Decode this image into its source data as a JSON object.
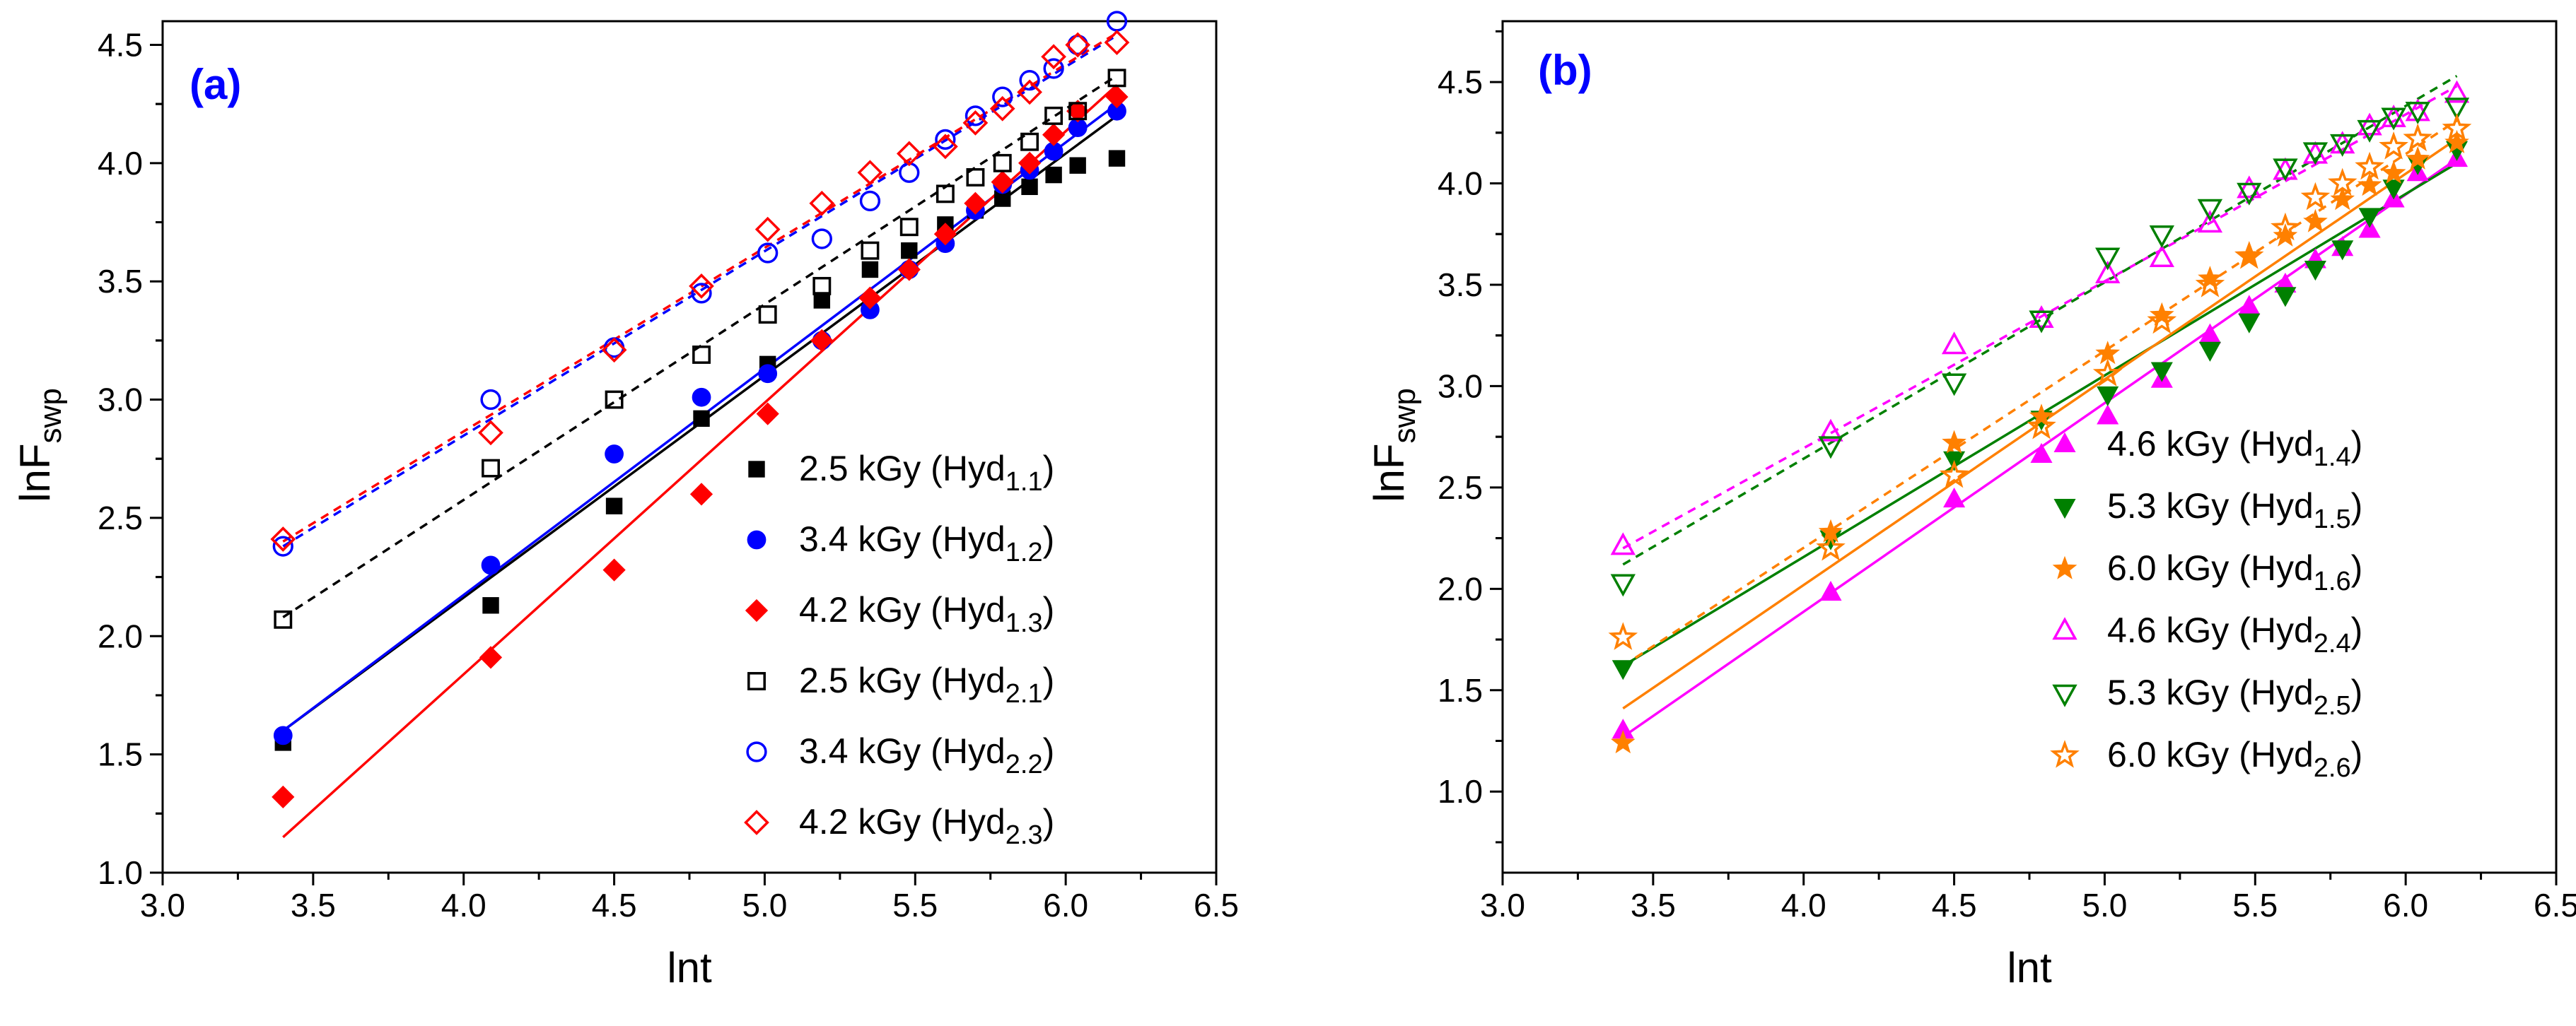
{
  "figure": {
    "panels": [
      {
        "panel_label": "(a)",
        "xlabel": "lnt",
        "ylabel_main": "lnF",
        "ylabel_sub": "swp"
      },
      {
        "panel_label": "(b)",
        "xlabel": "lnt",
        "ylabel_main": "lnF",
        "ylabel_sub": "swp"
      }
    ]
  },
  "chart_data": [
    {
      "type": "scatter",
      "title": "(a)",
      "xlabel": "lnt",
      "ylabel": "lnF_swp",
      "xlim": [
        3.0,
        6.5
      ],
      "ylim": [
        1.0,
        4.6
      ],
      "xticks": [
        "3.0",
        "3.5",
        "4.0",
        "4.5",
        "5.0",
        "5.5",
        "6.0",
        "6.5"
      ],
      "yticks": [
        "1.0",
        "1.5",
        "2.0",
        "2.5",
        "3.0",
        "3.5",
        "4.0",
        "4.5"
      ],
      "legend_position": "bottom-right",
      "x": [
        3.4,
        4.09,
        4.5,
        4.79,
        5.01,
        5.19,
        5.35,
        5.48,
        5.6,
        5.7,
        5.79,
        5.88,
        5.96,
        6.04,
        6.17
      ],
      "series": [
        {
          "name": "2.5 kGy (Hyd",
          "sub": "1.1",
          "suffix": ")",
          "color": "#000000",
          "marker": "square",
          "filled": true,
          "fit": "solid",
          "fit_line": [
            1.6,
            4.2
          ],
          "values": [
            1.55,
            2.13,
            2.55,
            2.92,
            3.15,
            3.42,
            3.55,
            3.63,
            3.74,
            3.8,
            3.85,
            3.9,
            3.95,
            3.99,
            4.02
          ]
        },
        {
          "name": "3.4 kGy (Hyd",
          "sub": "1.2",
          "suffix": ")",
          "color": "#0000ff",
          "marker": "circle",
          "filled": true,
          "fit": "solid",
          "fit_line": [
            1.6,
            4.25
          ],
          "values": [
            1.58,
            2.3,
            2.77,
            3.01,
            3.11,
            3.25,
            3.38,
            3.55,
            3.66,
            3.8,
            3.91,
            3.97,
            4.05,
            4.15,
            4.22
          ]
        },
        {
          "name": "4.2 kGy (Hyd",
          "sub": "1.3",
          "suffix": ")",
          "color": "#ff0000",
          "marker": "diamond",
          "filled": true,
          "fit": "solid",
          "fit_line": [
            1.15,
            4.33
          ],
          "values": [
            1.32,
            1.91,
            2.28,
            2.6,
            2.94,
            3.25,
            3.43,
            3.55,
            3.7,
            3.83,
            3.92,
            4.0,
            4.12,
            4.22,
            4.28
          ]
        },
        {
          "name": "2.5 kGy (Hyd",
          "sub": "2.1",
          "suffix": ")",
          "color": "#000000",
          "marker": "square",
          "filled": false,
          "fit": "dashed",
          "fit_line": [
            2.08,
            4.37
          ],
          "values": [
            2.07,
            2.71,
            3.0,
            3.19,
            3.36,
            3.48,
            3.63,
            3.73,
            3.87,
            3.94,
            4.0,
            4.09,
            4.2,
            4.22,
            4.36
          ]
        },
        {
          "name": "3.4 kGy (Hyd",
          "sub": "2.2",
          "suffix": ")",
          "color": "#0000ff",
          "marker": "circle",
          "filled": false,
          "fit": "dashed",
          "fit_line": [
            2.38,
            4.54
          ],
          "values": [
            2.38,
            3.0,
            3.22,
            3.45,
            3.62,
            3.68,
            3.84,
            3.96,
            4.1,
            4.2,
            4.28,
            4.35,
            4.4,
            4.5,
            4.6
          ]
        },
        {
          "name": "4.2 kGy (Hyd",
          "sub": "2.3",
          "suffix": ")",
          "color": "#ff0000",
          "marker": "diamond",
          "filled": false,
          "fit": "dashed",
          "fit_line": [
            2.4,
            4.55
          ],
          "values": [
            2.41,
            2.86,
            3.21,
            3.48,
            3.72,
            3.83,
            3.96,
            4.04,
            4.07,
            4.17,
            4.23,
            4.3,
            4.45,
            4.5,
            4.51
          ]
        }
      ]
    },
    {
      "type": "scatter",
      "title": "(b)",
      "xlabel": "lnt",
      "ylabel": "lnF_swp",
      "xlim": [
        3.0,
        6.5
      ],
      "ylim": [
        0.6,
        4.8
      ],
      "xticks": [
        "3.0",
        "3.5",
        "4.0",
        "4.5",
        "5.0",
        "5.5",
        "6.0",
        "6.5"
      ],
      "yticks": [
        "1.0",
        "1.5",
        "2.0",
        "2.5",
        "3.0",
        "3.5",
        "4.0",
        "4.5"
      ],
      "legend_position": "bottom-right",
      "x": [
        3.4,
        4.09,
        4.5,
        4.79,
        5.01,
        5.19,
        5.35,
        5.48,
        5.6,
        5.7,
        5.79,
        5.88,
        5.96,
        6.04,
        6.17
      ],
      "series": [
        {
          "name": "4.6 kGy (Hyd",
          "sub": "1.4",
          "suffix": ")",
          "color": "#ff00ff",
          "marker": "triangle-up",
          "filled": true,
          "fit": "solid",
          "fit_line": [
            1.27,
            4.12
          ],
          "values": [
            1.3,
            1.98,
            2.44,
            2.66,
            2.85,
            3.03,
            3.25,
            3.39,
            3.5,
            3.62,
            3.68,
            3.77,
            3.92,
            4.05,
            4.12
          ]
        },
        {
          "name": "5.3 kGy (Hyd",
          "sub": "1.5",
          "suffix": ")",
          "color": "#008000",
          "marker": "triangle-down",
          "filled": true,
          "fit": "solid",
          "fit_line": [
            1.62,
            4.1
          ],
          "values": [
            1.61,
            2.25,
            2.64,
            2.84,
            2.96,
            3.08,
            3.18,
            3.32,
            3.45,
            3.58,
            3.68,
            3.84,
            3.98,
            4.1,
            4.17
          ]
        },
        {
          "name": "6.0 kGy (Hyd",
          "sub": "1.6",
          "suffix": ")",
          "color": "#ff8000",
          "marker": "star",
          "filled": true,
          "fit": "solid",
          "fit_line": [
            1.41,
            4.22
          ],
          "values": [
            1.24,
            2.28,
            2.72,
            2.85,
            3.16,
            3.35,
            3.53,
            3.64,
            3.74,
            3.81,
            3.92,
            3.99,
            4.05,
            4.12,
            4.2
          ]
        },
        {
          "name": "4.6 kGy (Hyd",
          "sub": "2.4",
          "suffix": ")",
          "color": "#ff00ff",
          "marker": "triangle-up",
          "filled": false,
          "fit": "dashed",
          "fit_line": [
            2.2,
            4.48
          ],
          "values": [
            2.21,
            2.77,
            3.2,
            3.33,
            3.55,
            3.63,
            3.8,
            3.97,
            4.06,
            4.14,
            4.19,
            4.28,
            4.32,
            4.35,
            4.44
          ]
        },
        {
          "name": "5.3 kGy (Hyd",
          "sub": "2.5",
          "suffix": ")",
          "color": "#008000",
          "marker": "triangle-down",
          "filled": false,
          "fit": "dashed",
          "fit_line": [
            2.12,
            4.53
          ],
          "values": [
            2.03,
            2.71,
            3.02,
            3.33,
            3.64,
            3.75,
            3.88,
            3.96,
            4.08,
            4.16,
            4.2,
            4.27,
            4.33,
            4.36,
            4.38
          ]
        },
        {
          "name": "6.0 kGy (Hyd",
          "sub": "2.6",
          "suffix": ")",
          "color": "#ff8000",
          "marker": "star",
          "filled": false,
          "fit": "dashed",
          "fit_line": [
            1.62,
            4.31
          ],
          "values": [
            1.76,
            2.2,
            2.56,
            2.8,
            3.06,
            3.32,
            3.5,
            3.64,
            3.78,
            3.93,
            4.0,
            4.08,
            4.18,
            4.22,
            4.27
          ]
        }
      ]
    }
  ]
}
